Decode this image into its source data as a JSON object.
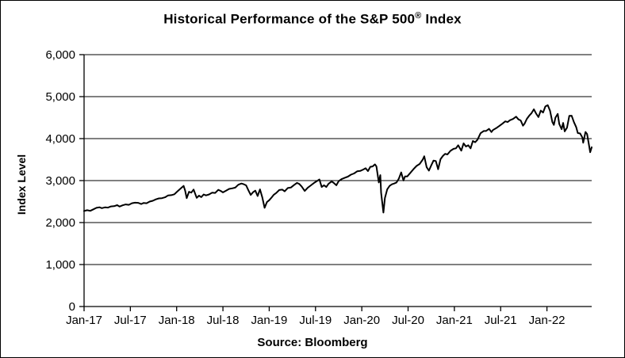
{
  "chart": {
    "title_prefix": "Historical Performance of the S&P 500",
    "title_reg": "®",
    "title_suffix": " Index",
    "source_label": "Source: Bloomberg"
  },
  "chart_data": {
    "type": "line",
    "title": "Historical Performance of the S&P 500® Index",
    "xlabel": "",
    "ylabel": "Index Level",
    "annotation": "Source: Bloomberg",
    "legend": "none",
    "grid": true,
    "line_color": "#000000",
    "background_color": "#ffffff",
    "ylim": [
      0,
      6000
    ],
    "y_ticks": {
      "values": [
        0,
        1000,
        2000,
        3000,
        4000,
        5000,
        6000
      ],
      "labels": [
        "0",
        "1,000",
        "2,000",
        "3,000",
        "4,000",
        "5,000",
        "6,000"
      ]
    },
    "x_unit": "months since Jan-2017",
    "x_range_months": [
      0,
      65.8
    ],
    "x_ticks": {
      "month_positions": [
        0,
        6,
        12,
        18,
        24,
        30,
        36,
        42,
        48,
        54,
        60
      ],
      "labels": [
        "Jan-17",
        "Jul-17",
        "Jan-18",
        "Jul-18",
        "Jan-19",
        "Jul-19",
        "Jan-20",
        "Jul-20",
        "Jan-21",
        "Jul-21",
        "Jan-22"
      ]
    },
    "series": [
      {
        "name": "S&P 500 Index Level",
        "points": [
          [
            0,
            2275
          ],
          [
            0.4,
            2294
          ],
          [
            0.8,
            2280
          ],
          [
            1.2,
            2316
          ],
          [
            1.6,
            2351
          ],
          [
            2,
            2364
          ],
          [
            2.3,
            2344
          ],
          [
            2.7,
            2363
          ],
          [
            3.1,
            2356
          ],
          [
            3.5,
            2384
          ],
          [
            3.9,
            2390
          ],
          [
            4.3,
            2416
          ],
          [
            4.6,
            2382
          ],
          [
            5,
            2412
          ],
          [
            5.4,
            2432
          ],
          [
            5.8,
            2423
          ],
          [
            6.2,
            2460
          ],
          [
            6.6,
            2473
          ],
          [
            7,
            2470
          ],
          [
            7.4,
            2441
          ],
          [
            7.7,
            2466
          ],
          [
            8.1,
            2461
          ],
          [
            8.5,
            2500
          ],
          [
            8.9,
            2519
          ],
          [
            9.3,
            2553
          ],
          [
            9.7,
            2575
          ],
          [
            10.1,
            2582
          ],
          [
            10.5,
            2602
          ],
          [
            10.9,
            2648
          ],
          [
            11.3,
            2652
          ],
          [
            11.7,
            2674
          ],
          [
            12.1,
            2743
          ],
          [
            12.5,
            2810
          ],
          [
            12.9,
            2873
          ],
          [
            13.1,
            2762
          ],
          [
            13.3,
            2581
          ],
          [
            13.6,
            2732
          ],
          [
            13.9,
            2714
          ],
          [
            14.2,
            2787
          ],
          [
            14.6,
            2588
          ],
          [
            14.9,
            2641
          ],
          [
            15.2,
            2605
          ],
          [
            15.5,
            2670
          ],
          [
            15.8,
            2648
          ],
          [
            16.2,
            2670
          ],
          [
            16.6,
            2713
          ],
          [
            17,
            2705
          ],
          [
            17.4,
            2779
          ],
          [
            17.7,
            2755
          ],
          [
            18,
            2718
          ],
          [
            18.4,
            2760
          ],
          [
            18.8,
            2802
          ],
          [
            19.2,
            2816
          ],
          [
            19.6,
            2833
          ],
          [
            20,
            2902
          ],
          [
            20.4,
            2930
          ],
          [
            20.7,
            2914
          ],
          [
            21,
            2886
          ],
          [
            21.3,
            2768
          ],
          [
            21.6,
            2658
          ],
          [
            21.9,
            2723
          ],
          [
            22.2,
            2760
          ],
          [
            22.5,
            2633
          ],
          [
            22.8,
            2790
          ],
          [
            23.1,
            2600
          ],
          [
            23.4,
            2351
          ],
          [
            23.7,
            2486
          ],
          [
            24,
            2532
          ],
          [
            24.3,
            2596
          ],
          [
            24.6,
            2665
          ],
          [
            24.9,
            2704
          ],
          [
            25.3,
            2776
          ],
          [
            25.7,
            2784
          ],
          [
            26,
            2743
          ],
          [
            26.4,
            2822
          ],
          [
            26.8,
            2834
          ],
          [
            27.2,
            2893
          ],
          [
            27.6,
            2946
          ],
          [
            27.9,
            2918
          ],
          [
            28.2,
            2860
          ],
          [
            28.6,
            2752
          ],
          [
            29,
            2832
          ],
          [
            29.4,
            2886
          ],
          [
            29.8,
            2942
          ],
          [
            30.2,
            2990
          ],
          [
            30.5,
            3026
          ],
          [
            30.8,
            2847
          ],
          [
            31.1,
            2889
          ],
          [
            31.4,
            2847
          ],
          [
            31.7,
            2926
          ],
          [
            32.1,
            2979
          ],
          [
            32.4,
            2940
          ],
          [
            32.7,
            2888
          ],
          [
            33,
            2986
          ],
          [
            33.4,
            3038
          ],
          [
            33.8,
            3067
          ],
          [
            34.2,
            3094
          ],
          [
            34.6,
            3141
          ],
          [
            35,
            3169
          ],
          [
            35.4,
            3221
          ],
          [
            35.8,
            3231
          ],
          [
            36.2,
            3265
          ],
          [
            36.5,
            3295
          ],
          [
            36.8,
            3226
          ],
          [
            37.1,
            3328
          ],
          [
            37.4,
            3338
          ],
          [
            37.7,
            3386
          ],
          [
            37.9,
            3338
          ],
          [
            38.2,
            2954
          ],
          [
            38.4,
            3130
          ],
          [
            38.5,
            2711
          ],
          [
            38.8,
            2237
          ],
          [
            39,
            2585
          ],
          [
            39.3,
            2790
          ],
          [
            39.6,
            2874
          ],
          [
            39.9,
            2912
          ],
          [
            40.2,
            2930
          ],
          [
            40.5,
            2955
          ],
          [
            40.8,
            3044
          ],
          [
            41.1,
            3194
          ],
          [
            41.4,
            3002
          ],
          [
            41.6,
            3098
          ],
          [
            41.9,
            3100
          ],
          [
            42.3,
            3185
          ],
          [
            42.7,
            3271
          ],
          [
            43.1,
            3349
          ],
          [
            43.5,
            3397
          ],
          [
            43.9,
            3500
          ],
          [
            44.1,
            3580
          ],
          [
            44.4,
            3319
          ],
          [
            44.7,
            3237
          ],
          [
            45,
            3363
          ],
          [
            45.3,
            3477
          ],
          [
            45.6,
            3465
          ],
          [
            45.9,
            3270
          ],
          [
            46.2,
            3509
          ],
          [
            46.5,
            3585
          ],
          [
            46.8,
            3638
          ],
          [
            47.1,
            3622
          ],
          [
            47.5,
            3709
          ],
          [
            47.9,
            3756
          ],
          [
            48.2,
            3768
          ],
          [
            48.5,
            3841
          ],
          [
            48.9,
            3714
          ],
          [
            49.2,
            3886
          ],
          [
            49.5,
            3811
          ],
          [
            49.8,
            3842
          ],
          [
            50.1,
            3768
          ],
          [
            50.4,
            3943
          ],
          [
            50.7,
            3913
          ],
          [
            51,
            3973
          ],
          [
            51.4,
            4129
          ],
          [
            51.8,
            4181
          ],
          [
            52.1,
            4181
          ],
          [
            52.5,
            4233
          ],
          [
            52.8,
            4156
          ],
          [
            53,
            4204
          ],
          [
            53.4,
            4247
          ],
          [
            53.8,
            4298
          ],
          [
            54.2,
            4352
          ],
          [
            54.6,
            4412
          ],
          [
            54.9,
            4395
          ],
          [
            55.2,
            4437
          ],
          [
            55.6,
            4468
          ],
          [
            56,
            4523
          ],
          [
            56.3,
            4459
          ],
          [
            56.6,
            4433
          ],
          [
            56.9,
            4308
          ],
          [
            57.1,
            4357
          ],
          [
            57.4,
            4471
          ],
          [
            57.7,
            4545
          ],
          [
            58,
            4605
          ],
          [
            58.3,
            4698
          ],
          [
            58.6,
            4595
          ],
          [
            58.9,
            4513
          ],
          [
            59.2,
            4668
          ],
          [
            59.5,
            4621
          ],
          [
            59.8,
            4766
          ],
          [
            60.1,
            4797
          ],
          [
            60.4,
            4663
          ],
          [
            60.7,
            4397
          ],
          [
            60.9,
            4327
          ],
          [
            61.1,
            4500
          ],
          [
            61.4,
            4589
          ],
          [
            61.6,
            4349
          ],
          [
            61.9,
            4225
          ],
          [
            62.1,
            4374
          ],
          [
            62.3,
            4171
          ],
          [
            62.6,
            4260
          ],
          [
            62.9,
            4543
          ],
          [
            63.2,
            4546
          ],
          [
            63.5,
            4392
          ],
          [
            63.8,
            4272
          ],
          [
            64,
            4132
          ],
          [
            64.3,
            4123
          ],
          [
            64.6,
            4024
          ],
          [
            64.7,
            3901
          ],
          [
            65,
            4158
          ],
          [
            65.2,
            4109
          ],
          [
            65.4,
            3901
          ],
          [
            65.6,
            3675
          ],
          [
            65.8,
            3795
          ]
        ]
      }
    ]
  }
}
